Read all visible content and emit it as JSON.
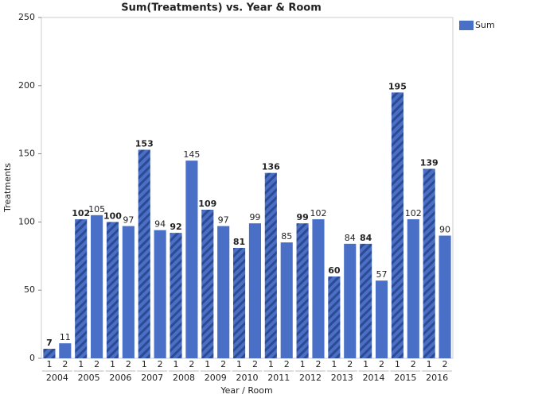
{
  "chart_data": {
    "type": "bar",
    "title": "Sum(Treatments) vs. Year & Room",
    "x_label": "Year / Room",
    "y_label": "Treatments",
    "groups": [
      "2004",
      "2005",
      "2006",
      "2007",
      "2008",
      "2009",
      "2010",
      "2011",
      "2012",
      "2013",
      "2014",
      "2015",
      "2016"
    ],
    "categories": [
      "1",
      "2",
      "1",
      "2",
      "1",
      "2",
      "1",
      "2",
      "1",
      "2",
      "1",
      "2",
      "1",
      "2",
      "1",
      "2",
      "1",
      "2",
      "1",
      "2",
      "1",
      "2",
      "1",
      "2",
      "1",
      "2"
    ],
    "series": [
      {
        "name": "Sum",
        "color": "#4a6fc6",
        "values": [
          7,
          11,
          102,
          105,
          100,
          97,
          153,
          94,
          92,
          145,
          109,
          97,
          81,
          99,
          136,
          85,
          99,
          102,
          60,
          84,
          84,
          57,
          195,
          102,
          139,
          90
        ]
      }
    ],
    "ylim": [
      0,
      250
    ],
    "yticks": [
      0,
      50,
      100,
      150,
      200,
      250
    ],
    "grid": false,
    "legend": "right"
  }
}
